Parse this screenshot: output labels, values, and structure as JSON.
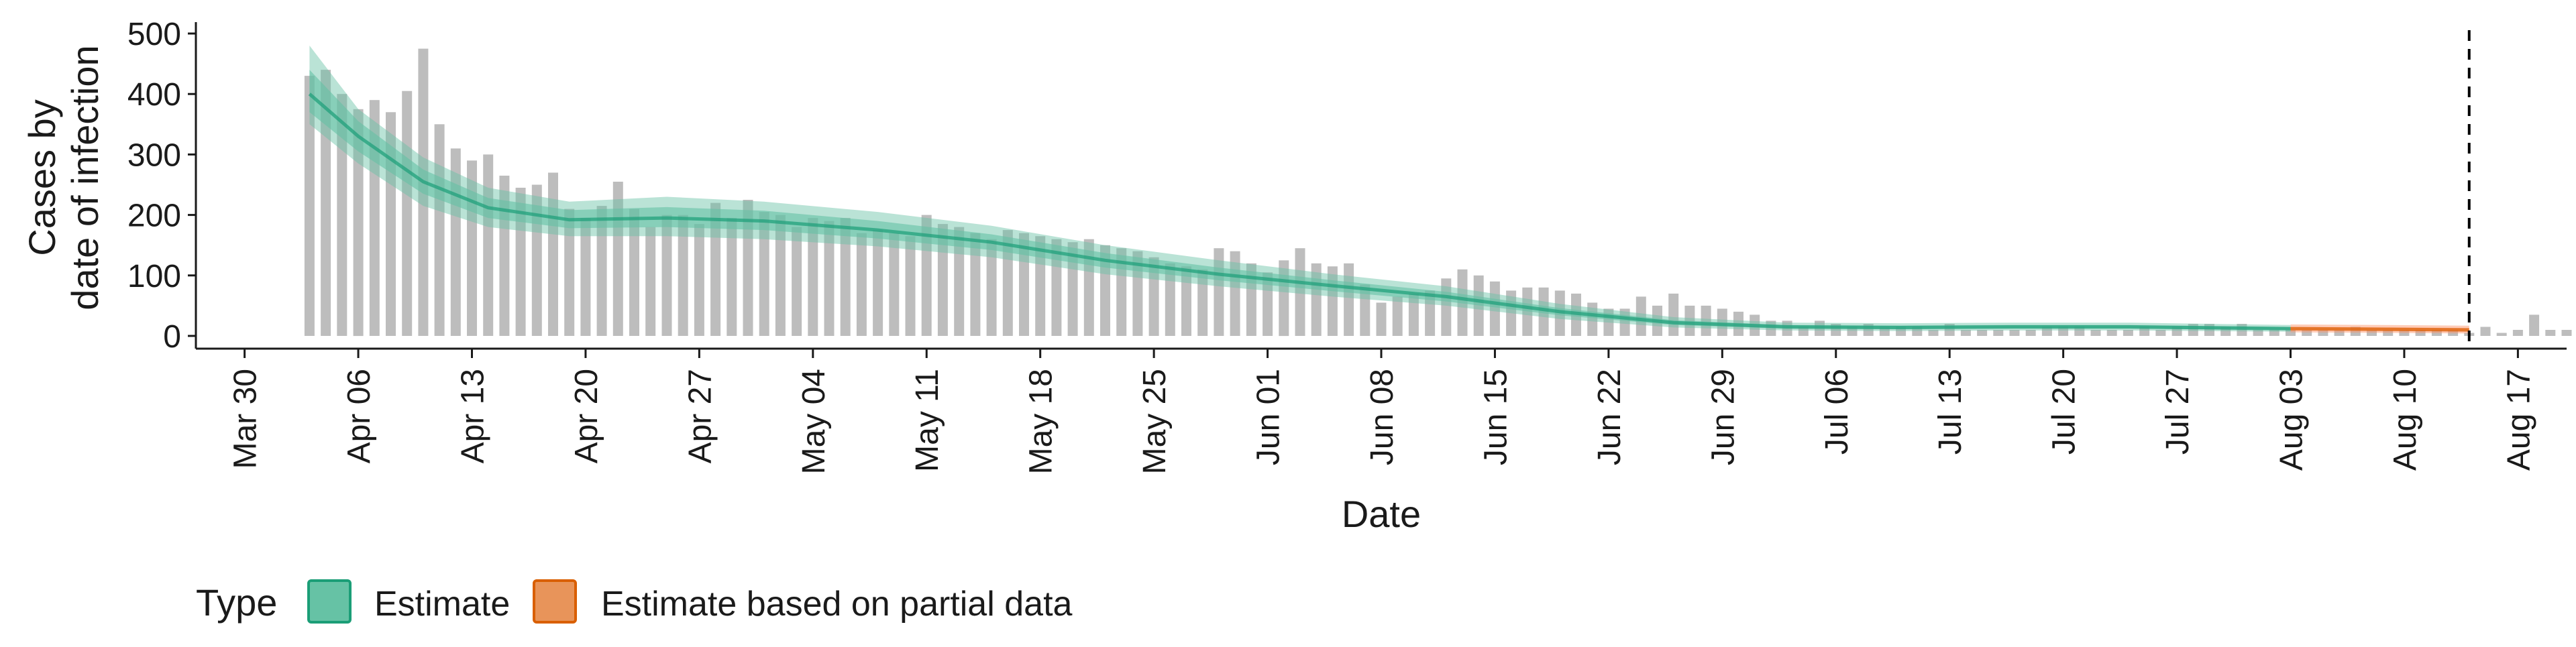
{
  "chart_data": {
    "type": "bar",
    "xlabel": "Date",
    "ylabel_lines": [
      "Cases by",
      "date of infection"
    ],
    "ylim": [
      0,
      500
    ],
    "xlim": [
      "2020-03-27",
      "2020-08-20"
    ],
    "y_ticks": [
      0,
      100,
      200,
      300,
      400,
      500
    ],
    "x_ticks": [
      {
        "date": "2020-03-30",
        "label": "Mar 30"
      },
      {
        "date": "2020-04-06",
        "label": "Apr 06"
      },
      {
        "date": "2020-04-13",
        "label": "Apr 13"
      },
      {
        "date": "2020-04-20",
        "label": "Apr 20"
      },
      {
        "date": "2020-04-27",
        "label": "Apr 27"
      },
      {
        "date": "2020-05-04",
        "label": "May 04"
      },
      {
        "date": "2020-05-11",
        "label": "May 11"
      },
      {
        "date": "2020-05-18",
        "label": "May 18"
      },
      {
        "date": "2020-05-25",
        "label": "May 25"
      },
      {
        "date": "2020-06-01",
        "label": "Jun 01"
      },
      {
        "date": "2020-06-08",
        "label": "Jun 08"
      },
      {
        "date": "2020-06-15",
        "label": "Jun 15"
      },
      {
        "date": "2020-06-22",
        "label": "Jun 22"
      },
      {
        "date": "2020-06-29",
        "label": "Jun 29"
      },
      {
        "date": "2020-07-06",
        "label": "Jul 06"
      },
      {
        "date": "2020-07-13",
        "label": "Jul 13"
      },
      {
        "date": "2020-07-20",
        "label": "Jul 20"
      },
      {
        "date": "2020-07-27",
        "label": "Jul 27"
      },
      {
        "date": "2020-08-03",
        "label": "Aug 03"
      },
      {
        "date": "2020-08-10",
        "label": "Aug 10"
      },
      {
        "date": "2020-08-17",
        "label": "Aug 17"
      }
    ],
    "reported_cases": {
      "color": "#bdbdbd",
      "start_date": "2020-04-03",
      "values": [
        430,
        440,
        400,
        375,
        390,
        370,
        405,
        475,
        350,
        310,
        290,
        300,
        265,
        245,
        250,
        270,
        210,
        195,
        215,
        255,
        210,
        180,
        200,
        200,
        185,
        220,
        195,
        225,
        205,
        200,
        180,
        195,
        190,
        195,
        170,
        175,
        170,
        165,
        200,
        185,
        180,
        170,
        160,
        175,
        170,
        165,
        160,
        155,
        160,
        150,
        145,
        140,
        130,
        120,
        115,
        110,
        145,
        140,
        120,
        105,
        125,
        145,
        120,
        115,
        120,
        85,
        55,
        65,
        70,
        75,
        95,
        110,
        100,
        90,
        75,
        80,
        80,
        75,
        70,
        55,
        45,
        45,
        65,
        50,
        70,
        50,
        50,
        45,
        40,
        35,
        25,
        25,
        15,
        25,
        20,
        15,
        20,
        15,
        15,
        15,
        10,
        20,
        10,
        10,
        10,
        10,
        10,
        15,
        15,
        15,
        10,
        10,
        10,
        15,
        10,
        15,
        20,
        20,
        15,
        20,
        10,
        10,
        10,
        10,
        10,
        10,
        15,
        10,
        10,
        10,
        10,
        10,
        10,
        5,
        15,
        5,
        10,
        35,
        10,
        10,
        10,
        5
      ]
    },
    "series": [
      {
        "name": "Estimate",
        "color": "#1b9e77",
        "fill": "#66c2a5",
        "points": [
          {
            "x": "2020-04-03",
            "median": 400,
            "lower50": 370,
            "upper50": 440,
            "lower90": 350,
            "upper90": 480
          },
          {
            "x": "2020-04-06",
            "median": 330,
            "lower50": 305,
            "upper50": 355,
            "lower90": 285,
            "upper90": 375
          },
          {
            "x": "2020-04-10",
            "median": 255,
            "lower50": 235,
            "upper50": 275,
            "lower90": 215,
            "upper90": 295
          },
          {
            "x": "2020-04-14",
            "median": 212,
            "lower50": 195,
            "upper50": 228,
            "lower90": 180,
            "upper90": 245
          },
          {
            "x": "2020-04-19",
            "median": 192,
            "lower50": 178,
            "upper50": 208,
            "lower90": 165,
            "upper90": 222
          },
          {
            "x": "2020-04-25",
            "median": 195,
            "lower50": 180,
            "upper50": 213,
            "lower90": 165,
            "upper90": 230
          },
          {
            "x": "2020-05-01",
            "median": 190,
            "lower50": 175,
            "upper50": 207,
            "lower90": 160,
            "upper90": 222
          },
          {
            "x": "2020-05-08",
            "median": 175,
            "lower50": 161,
            "upper50": 190,
            "lower90": 148,
            "upper90": 205
          },
          {
            "x": "2020-05-15",
            "median": 155,
            "lower50": 142,
            "upper50": 168,
            "lower90": 130,
            "upper90": 182
          },
          {
            "x": "2020-05-22",
            "median": 125,
            "lower50": 113,
            "upper50": 137,
            "lower90": 102,
            "upper90": 150
          },
          {
            "x": "2020-05-29",
            "median": 102,
            "lower50": 92,
            "upper50": 113,
            "lower90": 82,
            "upper90": 125
          },
          {
            "x": "2020-06-05",
            "median": 83,
            "lower50": 74,
            "upper50": 92,
            "lower90": 65,
            "upper90": 102
          },
          {
            "x": "2020-06-12",
            "median": 65,
            "lower50": 57,
            "upper50": 73,
            "lower90": 50,
            "upper90": 82
          },
          {
            "x": "2020-06-19",
            "median": 40,
            "lower50": 34,
            "upper50": 46,
            "lower90": 28,
            "upper90": 53
          },
          {
            "x": "2020-06-26",
            "median": 22,
            "lower50": 18,
            "upper50": 26,
            "lower90": 14,
            "upper90": 31
          },
          {
            "x": "2020-07-03",
            "median": 15,
            "lower50": 12,
            "upper50": 18,
            "lower90": 9,
            "upper90": 22
          },
          {
            "x": "2020-07-10",
            "median": 14,
            "lower50": 11,
            "upper50": 17,
            "lower90": 8,
            "upper90": 21
          },
          {
            "x": "2020-07-17",
            "median": 15,
            "lower50": 12,
            "upper50": 18,
            "lower90": 9,
            "upper90": 22
          },
          {
            "x": "2020-07-24",
            "median": 15,
            "lower50": 12,
            "upper50": 18,
            "lower90": 9,
            "upper90": 22
          },
          {
            "x": "2020-08-03",
            "median": 12,
            "lower50": 10,
            "upper50": 15,
            "lower90": 7,
            "upper90": 18
          }
        ]
      },
      {
        "name": "Estimate based on partial data",
        "color": "#d95f02",
        "fill": "#fc8d62",
        "points": [
          {
            "x": "2020-08-03",
            "median": 12,
            "lower50": 9,
            "upper50": 15,
            "lower90": 6,
            "upper90": 19
          },
          {
            "x": "2020-08-09",
            "median": 11,
            "lower50": 8,
            "upper50": 14,
            "lower90": 5,
            "upper90": 18
          },
          {
            "x": "2020-08-14",
            "median": 10,
            "lower50": 7,
            "upper50": 13,
            "lower90": 4,
            "upper90": 17
          }
        ]
      }
    ],
    "reference_line": {
      "x": "2020-08-14",
      "style": "dashed",
      "color": "#000000"
    },
    "legend": {
      "title": "Type",
      "position": "bottom",
      "items": [
        {
          "label": "Estimate",
          "fill": "#66c2a5",
          "stroke": "#1b9e77"
        },
        {
          "label": "Estimate based on partial data",
          "fill": "#e8945a",
          "stroke": "#d95f02"
        }
      ]
    },
    "grid": false
  }
}
